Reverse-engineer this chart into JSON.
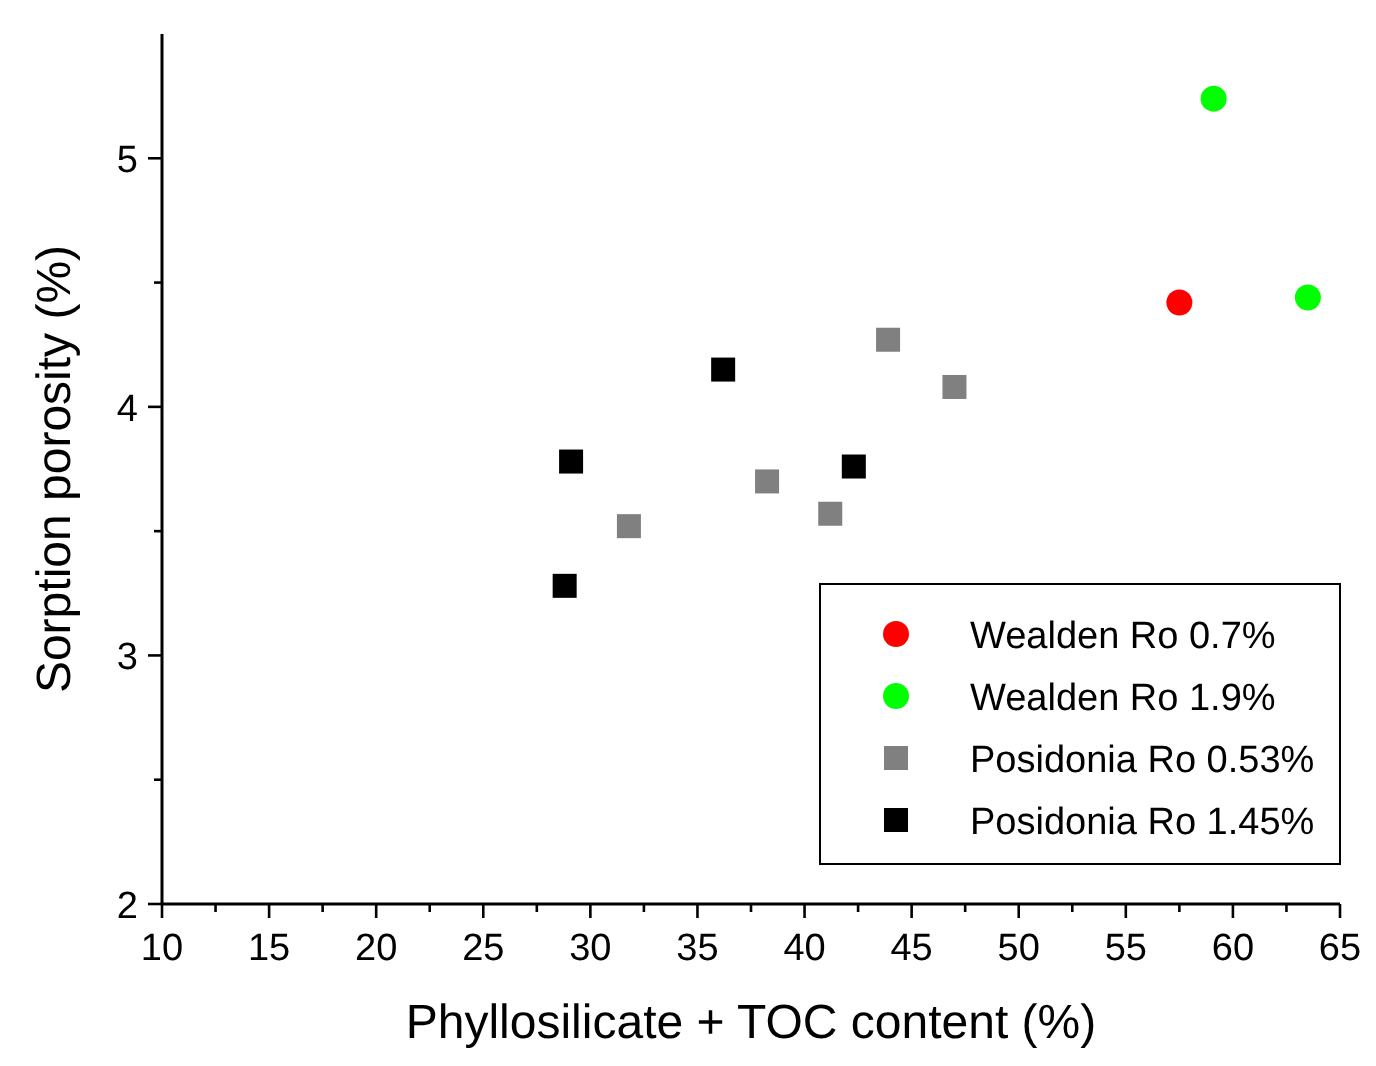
{
  "chart_data": {
    "type": "scatter",
    "xlabel": "Phyllosilicate + TOC content (%)",
    "ylabel": "Sorption porosity (%)",
    "xlim": [
      10,
      65
    ],
    "ylim": [
      2,
      5.5
    ],
    "xticks": [
      10,
      {
        "value": 12.5,
        "label": null
      },
      15,
      {
        "value": 17.5,
        "label": null
      },
      20,
      {
        "value": 22.5,
        "label": null
      },
      25,
      {
        "value": 27.5,
        "label": null
      },
      30,
      {
        "value": 32.5,
        "label": null
      },
      35,
      {
        "value": 37.5,
        "label": null
      },
      40,
      {
        "value": 42.5,
        "label": null
      },
      45,
      {
        "value": 47.5,
        "label": null
      },
      50,
      {
        "value": 52.5,
        "label": null
      },
      55,
      {
        "value": 57.5,
        "label": null
      },
      60,
      {
        "value": 62.5,
        "label": null
      },
      65
    ],
    "yticks": [
      2,
      {
        "value": 2.5,
        "label": null
      },
      3,
      {
        "value": 3.5,
        "label": null
      },
      4,
      {
        "value": 4.5,
        "label": null
      },
      5
    ],
    "legend": "bottom right",
    "grid": false,
    "series": [
      {
        "name": "Wealden Ro 0.7%",
        "color": "#ff0000",
        "marker": "circle",
        "x": [
          57.5
        ],
        "values": [
          4.42
        ]
      },
      {
        "name": "Wealden Ro 1.9%",
        "color": "#00ff00",
        "marker": "circle",
        "x": [
          59.1,
          63.5
        ],
        "values": [
          5.24,
          4.44
        ]
      },
      {
        "name": "Posidonia Ro 0.53%",
        "color": "#808080",
        "marker": "square",
        "x": [
          31.8,
          38.25,
          41.2,
          43.9,
          47.0
        ],
        "values": [
          3.52,
          3.7,
          3.57,
          4.27,
          4.08
        ]
      },
      {
        "name": "Posidonia Ro 1.45%",
        "color": "#000000",
        "marker": "square",
        "x": [
          28.8,
          29.1,
          36.2,
          42.3
        ],
        "values": [
          3.28,
          3.78,
          4.15,
          3.76
        ]
      }
    ]
  }
}
